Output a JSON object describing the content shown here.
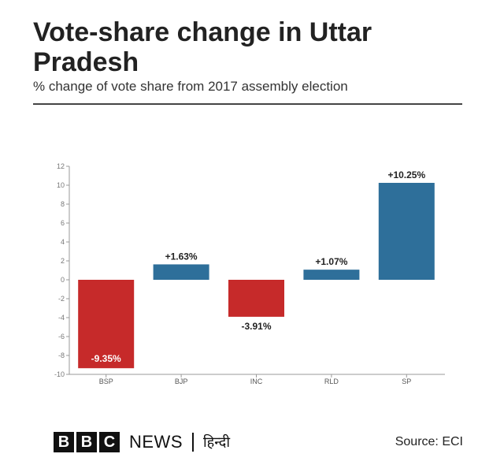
{
  "header": {
    "title": "Vote-share change in Uttar Pradesh",
    "subtitle": "% change of vote share from 2017 assembly election"
  },
  "footer": {
    "brand_letters": [
      "B",
      "B",
      "C"
    ],
    "brand_news": "NEWS",
    "brand_hindi": "हिन्दी",
    "source": "Source: ECI"
  },
  "colors": {
    "positive": "#2e6f9a",
    "negative": "#c62a2a",
    "text": "#222222"
  },
  "chart_data": {
    "type": "bar",
    "title": "Vote-share change in Uttar Pradesh",
    "subtitle": "% change of vote share from 2017 assembly election",
    "xlabel": "",
    "ylabel": "",
    "categories": [
      "BSP",
      "BJP",
      "INC",
      "RLD",
      "SP"
    ],
    "values": [
      -9.35,
      1.63,
      -3.91,
      1.07,
      10.25
    ],
    "data_labels": [
      "-9.35%",
      "+1.63%",
      "-3.91%",
      "+1.07%",
      "+10.25%"
    ],
    "ylim": [
      -10,
      12
    ],
    "yticks": [
      12,
      10,
      8,
      6,
      4,
      2,
      0,
      -2,
      -4,
      -6,
      -8,
      -10
    ],
    "grid": false,
    "legend": "none"
  }
}
